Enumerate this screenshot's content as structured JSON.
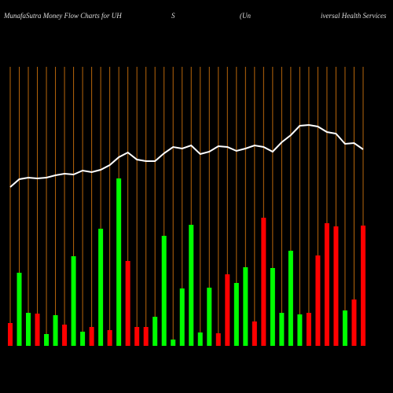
{
  "chart_data": {
    "type": "money-flow",
    "title_parts": [
      "MunafaSutra  Money Flow  Charts for UH",
      "S",
      "(Un",
      "iversal Health Services"
    ],
    "ylim": [
      0,
      355
    ],
    "bars": {
      "values": [
        29,
        93,
        42,
        41,
        15,
        39,
        27,
        114,
        18,
        24,
        149,
        20,
        213,
        108,
        24,
        24,
        37,
        140,
        8,
        73,
        154,
        17,
        74,
        16,
        91,
        80,
        100,
        31,
        163,
        99,
        42,
        121,
        40,
        42,
        115,
        156,
        152,
        45,
        59,
        153
      ],
      "colors": [
        "#ff0000",
        "#00ff00",
        "#00ff00",
        "#ff0000",
        "#00ff00",
        "#00ff00",
        "#ff0000",
        "#00ff00",
        "#00ff00",
        "#ff0000",
        "#00ff00",
        "#ff0000",
        "#00ff00",
        "#ff0000",
        "#ff0000",
        "#ff0000",
        "#00ff00",
        "#00ff00",
        "#00ff00",
        "#00ff00",
        "#00ff00",
        "#00ff00",
        "#00ff00",
        "#ff0000",
        "#ff0000",
        "#00ff00",
        "#00ff00",
        "#ff0000",
        "#ff0000",
        "#00ff00",
        "#00ff00",
        "#00ff00",
        "#00ff00",
        "#ff0000",
        "#ff0000",
        "#ff0000",
        "#ff0000",
        "#00ff00",
        "#ff0000",
        "#ff0000"
      ]
    },
    "line": {
      "color": "#ffffff",
      "values": [
        202,
        212,
        214,
        213,
        214,
        217,
        219,
        218,
        223,
        221,
        224,
        230,
        240,
        246,
        237,
        235,
        235,
        245,
        253,
        251,
        255,
        244,
        247,
        254,
        253,
        248,
        251,
        255,
        253,
        247,
        259,
        268,
        280,
        281,
        279,
        272,
        270,
        257,
        258,
        250
      ]
    },
    "grid_color": "#b8660b"
  }
}
